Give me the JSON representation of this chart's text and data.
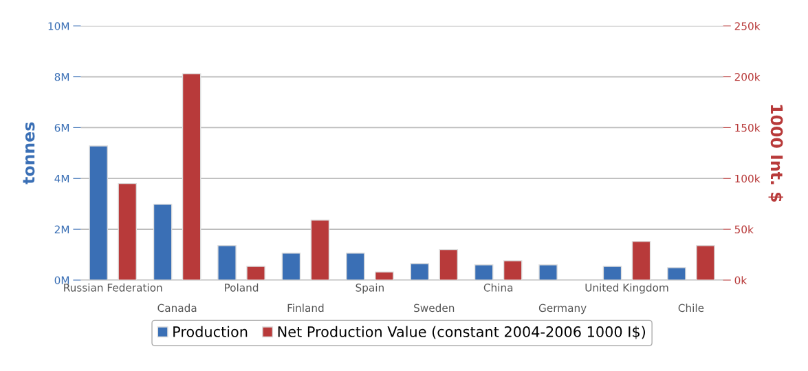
{
  "chart_data": {
    "type": "bar",
    "categories": [
      "Russian Federation",
      "Canada",
      "Poland",
      "Finland",
      "Spain",
      "Sweden",
      "China",
      "Germany",
      "United Kingdom",
      "Chile"
    ],
    "series": [
      {
        "name": "Production",
        "color": "#3a6fb5",
        "values": [
          5280000,
          2980000,
          1360000,
          1060000,
          1060000,
          650000,
          600000,
          600000,
          540000,
          490000
        ]
      },
      {
        "name": "Net Production Value (constant 2004-2006 1000 I$)",
        "color": "#b83a3a",
        "axis": "y2",
        "values": [
          95000,
          203000,
          13500,
          59000,
          8000,
          30000,
          19000,
          null,
          38000,
          34000
        ]
      }
    ],
    "ylabel": "tonnes",
    "y2label": "1000 Int. $",
    "ylim": [
      0,
      10000000
    ],
    "yticks": [
      {
        "value": 0,
        "label": "0M"
      },
      {
        "value": 2000000,
        "label": "2M"
      },
      {
        "value": 4000000,
        "label": "4M"
      },
      {
        "value": 6000000,
        "label": "6M"
      },
      {
        "value": 8000000,
        "label": "8M"
      },
      {
        "value": 10000000,
        "label": "10M"
      }
    ],
    "y2lim": [
      0,
      250000
    ],
    "y2ticks": [
      {
        "value": 0,
        "label": "0k"
      },
      {
        "value": 50000,
        "label": "50k"
      },
      {
        "value": 100000,
        "label": "100k"
      },
      {
        "value": 150000,
        "label": "150k"
      },
      {
        "value": 200000,
        "label": "200k"
      },
      {
        "value": 250000,
        "label": "250k"
      }
    ],
    "grid": "y",
    "legend": "bottom"
  }
}
